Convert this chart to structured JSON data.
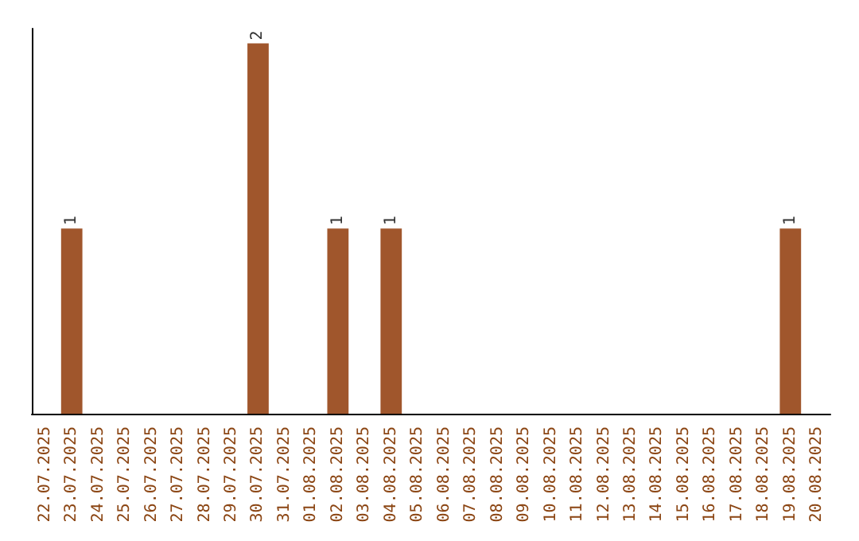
{
  "chart_data": {
    "type": "bar",
    "categories": [
      "22.07.2025",
      "23.07.2025",
      "24.07.2025",
      "25.07.2025",
      "26.07.2025",
      "27.07.2025",
      "28.07.2025",
      "29.07.2025",
      "30.07.2025",
      "31.07.2025",
      "01.08.2025",
      "02.08.2025",
      "03.08.2025",
      "04.08.2025",
      "05.08.2025",
      "06.08.2025",
      "07.08.2025",
      "08.08.2025",
      "09.08.2025",
      "10.08.2025",
      "11.08.2025",
      "12.08.2025",
      "13.08.2025",
      "14.08.2025",
      "15.08.2025",
      "16.08.2025",
      "17.08.2025",
      "18.08.2025",
      "19.08.2025",
      "20.08.2025"
    ],
    "values": [
      0,
      1,
      0,
      0,
      0,
      0,
      0,
      0,
      2,
      0,
      0,
      1,
      0,
      1,
      0,
      0,
      0,
      0,
      0,
      0,
      0,
      0,
      0,
      0,
      0,
      0,
      0,
      0,
      1,
      0
    ],
    "value_labels": [
      null,
      "1",
      null,
      null,
      null,
      null,
      null,
      null,
      "2",
      null,
      null,
      "1",
      null,
      "1",
      null,
      null,
      null,
      null,
      null,
      null,
      null,
      null,
      null,
      null,
      null,
      null,
      null,
      null,
      "1",
      null
    ],
    "color": "#a0562c",
    "tick_labels": "x",
    "grid": false
  }
}
